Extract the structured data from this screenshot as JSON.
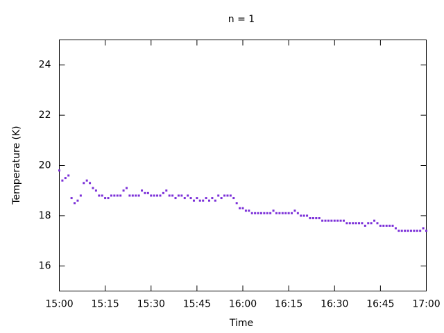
{
  "chart_data": {
    "type": "scatter",
    "title": "n = 1",
    "x_label": "Time",
    "y_label": "Temperature (K)",
    "x": [
      "15:00",
      "15:01",
      "15:02",
      "15:03",
      "15:04",
      "15:05",
      "15:06",
      "15:07",
      "15:08",
      "15:09",
      "15:10",
      "15:11",
      "15:12",
      "15:13",
      "15:14",
      "15:15",
      "15:16",
      "15:17",
      "15:18",
      "15:19",
      "15:20",
      "15:21",
      "15:22",
      "15:23",
      "15:24",
      "15:25",
      "15:26",
      "15:27",
      "15:28",
      "15:29",
      "15:30",
      "15:31",
      "15:32",
      "15:33",
      "15:34",
      "15:35",
      "15:36",
      "15:37",
      "15:38",
      "15:39",
      "15:40",
      "15:41",
      "15:42",
      "15:43",
      "15:44",
      "15:45",
      "15:46",
      "15:47",
      "15:48",
      "15:49",
      "15:50",
      "15:51",
      "15:52",
      "15:53",
      "15:54",
      "15:55",
      "15:56",
      "15:57",
      "15:58",
      "15:59",
      "16:00",
      "16:01",
      "16:02",
      "16:03",
      "16:04",
      "16:05",
      "16:06",
      "16:07",
      "16:08",
      "16:09",
      "16:10",
      "16:11",
      "16:12",
      "16:13",
      "16:14",
      "16:15",
      "16:16",
      "16:17",
      "16:18",
      "16:19",
      "16:20",
      "16:21",
      "16:22",
      "16:23",
      "16:24",
      "16:25",
      "16:26",
      "16:27",
      "16:28",
      "16:29",
      "16:30",
      "16:31",
      "16:32",
      "16:33",
      "16:34",
      "16:35",
      "16:36",
      "16:37",
      "16:38",
      "16:39",
      "16:40",
      "16:41",
      "16:42",
      "16:43",
      "16:44",
      "16:45",
      "16:46",
      "16:47",
      "16:48",
      "16:49",
      "16:50",
      "16:51",
      "16:52",
      "16:53",
      "16:54",
      "16:55",
      "16:56",
      "16:57",
      "16:58",
      "16:59",
      "17:00"
    ],
    "values": [
      19.8,
      19.4,
      19.5,
      19.6,
      18.7,
      18.5,
      18.6,
      18.8,
      19.3,
      19.4,
      19.3,
      19.1,
      19.0,
      18.8,
      18.8,
      18.7,
      18.7,
      18.8,
      18.8,
      18.8,
      18.8,
      19.0,
      19.1,
      18.8,
      18.8,
      18.8,
      18.8,
      19.0,
      18.9,
      18.9,
      18.8,
      18.8,
      18.8,
      18.8,
      18.9,
      19.0,
      18.8,
      18.8,
      18.7,
      18.8,
      18.8,
      18.7,
      18.8,
      18.7,
      18.6,
      18.7,
      18.6,
      18.6,
      18.7,
      18.6,
      18.7,
      18.6,
      18.8,
      18.7,
      18.8,
      18.8,
      18.8,
      18.7,
      18.5,
      18.3,
      18.3,
      18.2,
      18.2,
      18.1,
      18.1,
      18.1,
      18.1,
      18.1,
      18.1,
      18.1,
      18.2,
      18.1,
      18.1,
      18.1,
      18.1,
      18.1,
      18.1,
      18.2,
      18.1,
      18.0,
      18.0,
      18.0,
      17.9,
      17.9,
      17.9,
      17.9,
      17.8,
      17.8,
      17.8,
      17.8,
      17.8,
      17.8,
      17.8,
      17.8,
      17.7,
      17.7,
      17.7,
      17.7,
      17.7,
      17.7,
      17.6,
      17.7,
      17.7,
      17.8,
      17.7,
      17.6,
      17.6,
      17.6,
      17.6,
      17.6,
      17.5,
      17.4,
      17.4,
      17.4,
      17.4,
      17.4,
      17.4,
      17.4,
      17.4,
      17.5,
      17.4
    ],
    "color": "#7b2fd8",
    "xlim": [
      "15:00",
      "17:00"
    ],
    "xticks": [
      "15:00",
      "15:15",
      "15:30",
      "15:45",
      "16:00",
      "16:15",
      "16:30",
      "16:45",
      "17:00"
    ],
    "ylim": [
      15,
      25
    ],
    "yticks": [
      16,
      18,
      20,
      22,
      24
    ],
    "grid": false
  }
}
